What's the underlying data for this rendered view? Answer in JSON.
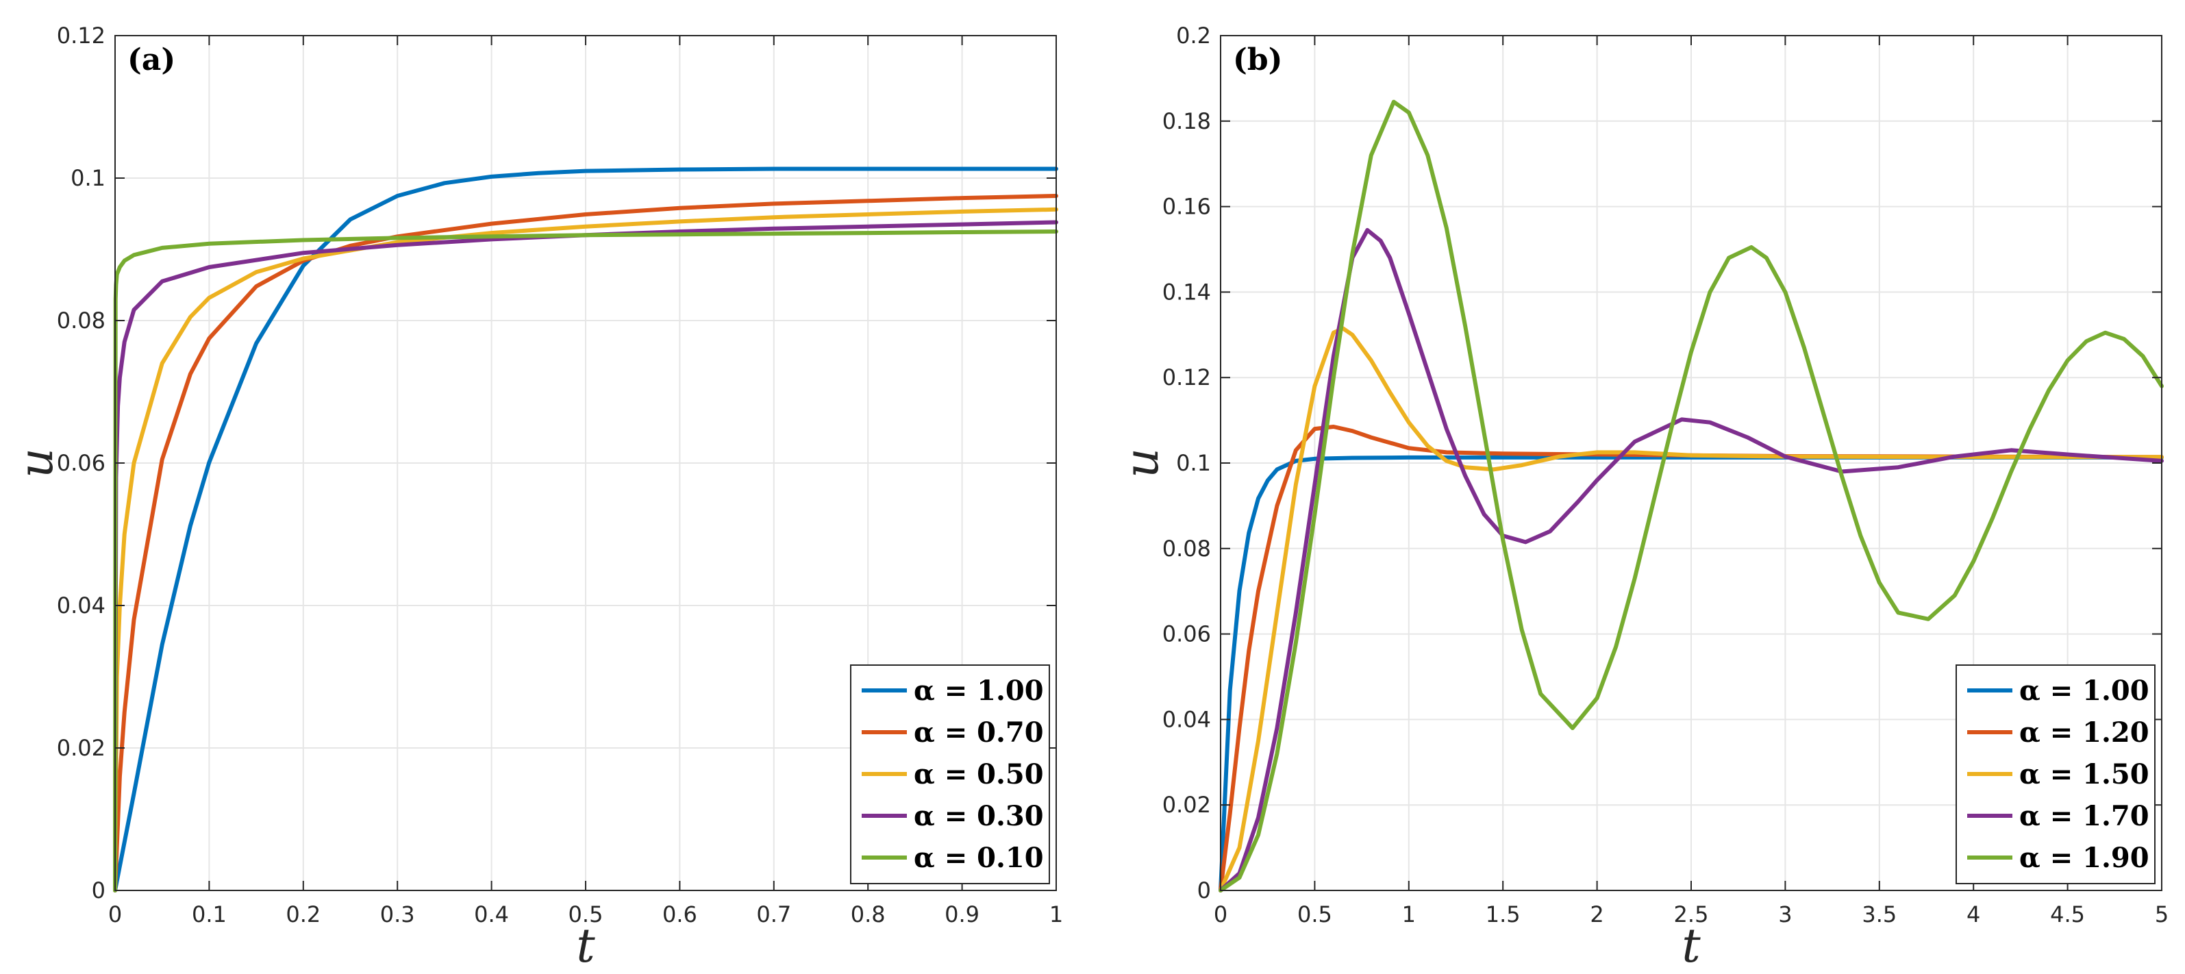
{
  "chart_data": [
    {
      "type": "line",
      "panel_label": "(a)",
      "xlabel": "t",
      "ylabel": "u",
      "xlim": [
        0,
        1
      ],
      "ylim": [
        0,
        0.12
      ],
      "xticks": [
        "0",
        "0.1",
        "0.2",
        "0.3",
        "0.4",
        "0.5",
        "0.6",
        "0.7",
        "0.8",
        "0.9",
        "1"
      ],
      "yticks": [
        "0",
        "0.02",
        "0.04",
        "0.06",
        "0.08",
        "0.1",
        "0.12"
      ],
      "grid": true,
      "legend_position": "bottom-right",
      "series": [
        {
          "name": "α = 1.00",
          "color": "#0072BD",
          "x": [
            0,
            0.02,
            0.05,
            0.08,
            0.1,
            0.15,
            0.2,
            0.25,
            0.3,
            0.35,
            0.4,
            0.45,
            0.5,
            0.6,
            0.7,
            0.8,
            0.9,
            1.0
          ],
          "y": [
            0,
            0.0136,
            0.0345,
            0.0512,
            0.0601,
            0.0768,
            0.0877,
            0.0942,
            0.0975,
            0.0993,
            0.1002,
            0.1007,
            0.101,
            0.1012,
            0.1013,
            0.1013,
            0.1013,
            0.1013
          ]
        },
        {
          "name": "α = 0.70",
          "color": "#D95319",
          "x": [
            0,
            0.005,
            0.01,
            0.02,
            0.05,
            0.08,
            0.1,
            0.15,
            0.2,
            0.25,
            0.3,
            0.4,
            0.5,
            0.6,
            0.7,
            0.8,
            0.9,
            1.0
          ],
          "y": [
            0,
            0.016,
            0.025,
            0.038,
            0.0605,
            0.0725,
            0.0775,
            0.0848,
            0.0884,
            0.0905,
            0.0918,
            0.0936,
            0.0949,
            0.0958,
            0.0964,
            0.0968,
            0.0972,
            0.0975
          ]
        },
        {
          "name": "α = 0.50",
          "color": "#EDB120",
          "x": [
            0,
            0.002,
            0.005,
            0.01,
            0.02,
            0.05,
            0.08,
            0.1,
            0.15,
            0.2,
            0.3,
            0.4,
            0.5,
            0.6,
            0.7,
            0.8,
            0.9,
            1.0
          ],
          "y": [
            0,
            0.03,
            0.04,
            0.05,
            0.06,
            0.074,
            0.0805,
            0.0832,
            0.0868,
            0.0887,
            0.091,
            0.0923,
            0.0932,
            0.0939,
            0.0945,
            0.0949,
            0.0953,
            0.0956
          ]
        },
        {
          "name": "α = 0.30",
          "color": "#7E2F8E",
          "x": [
            0,
            0.001,
            0.003,
            0.005,
            0.01,
            0.02,
            0.05,
            0.1,
            0.15,
            0.2,
            0.3,
            0.4,
            0.5,
            0.6,
            0.7,
            0.8,
            0.9,
            1.0
          ],
          "y": [
            0,
            0.058,
            0.068,
            0.072,
            0.077,
            0.0815,
            0.0855,
            0.0875,
            0.0885,
            0.0895,
            0.0906,
            0.0914,
            0.092,
            0.0925,
            0.0929,
            0.0932,
            0.0935,
            0.0938
          ]
        },
        {
          "name": "α = 0.10",
          "color": "#77AC30",
          "x": [
            0,
            0.0005,
            0.001,
            0.002,
            0.005,
            0.01,
            0.02,
            0.05,
            0.1,
            0.2,
            0.3,
            0.4,
            0.5,
            0.6,
            0.7,
            0.8,
            0.9,
            1.0
          ],
          "y": [
            0,
            0.083,
            0.085,
            0.0865,
            0.0875,
            0.0884,
            0.0892,
            0.0902,
            0.0908,
            0.0913,
            0.0916,
            0.0918,
            0.092,
            0.0921,
            0.0922,
            0.0923,
            0.0924,
            0.0925
          ]
        }
      ]
    },
    {
      "type": "line",
      "panel_label": "(b)",
      "xlabel": "t",
      "ylabel": "u",
      "xlim": [
        0,
        5
      ],
      "ylim": [
        0,
        0.2
      ],
      "xticks": [
        "0",
        "0.5",
        "1",
        "1.5",
        "2",
        "2.5",
        "3",
        "3.5",
        "4",
        "4.5",
        "5"
      ],
      "yticks": [
        "0",
        "0.02",
        "0.04",
        "0.06",
        "0.08",
        "0.1",
        "0.12",
        "0.14",
        "0.16",
        "0.18",
        "0.2"
      ],
      "grid": true,
      "legend_position": "bottom-right",
      "series": [
        {
          "name": "α = 1.00",
          "color": "#0072BD",
          "x": [
            0,
            0.05,
            0.1,
            0.15,
            0.2,
            0.25,
            0.3,
            0.4,
            0.5,
            0.7,
            1.0,
            1.5,
            2,
            3,
            4,
            5
          ],
          "y": [
            0,
            0.0468,
            0.0701,
            0.0836,
            0.0917,
            0.0959,
            0.0985,
            0.1005,
            0.101,
            0.1012,
            0.1013,
            0.1013,
            0.1013,
            0.1013,
            0.1013,
            0.1013
          ]
        },
        {
          "name": "α = 1.20",
          "color": "#D95319",
          "x": [
            0,
            0.05,
            0.1,
            0.15,
            0.2,
            0.3,
            0.4,
            0.5,
            0.6,
            0.7,
            0.8,
            1.0,
            1.2,
            1.5,
            2.0,
            2.5,
            3,
            4,
            5
          ],
          "y": [
            0,
            0.018,
            0.038,
            0.056,
            0.07,
            0.09,
            0.103,
            0.108,
            0.1085,
            0.1075,
            0.106,
            0.1035,
            0.1025,
            0.1022,
            0.102,
            0.1018,
            0.1016,
            0.1015,
            0.1014
          ]
        },
        {
          "name": "α = 1.50",
          "color": "#EDB120",
          "x": [
            0,
            0.1,
            0.2,
            0.3,
            0.4,
            0.5,
            0.6,
            0.65,
            0.7,
            0.8,
            0.9,
            1.0,
            1.1,
            1.2,
            1.3,
            1.45,
            1.6,
            1.8,
            2.0,
            2.2,
            2.5,
            3,
            4,
            5
          ],
          "y": [
            0,
            0.01,
            0.035,
            0.065,
            0.095,
            0.118,
            0.1305,
            0.1315,
            0.13,
            0.124,
            0.1165,
            0.1095,
            0.104,
            0.1005,
            0.099,
            0.0985,
            0.0995,
            0.1015,
            0.1025,
            0.1025,
            0.1018,
            0.1015,
            0.1014,
            0.1014
          ]
        },
        {
          "name": "α = 1.70",
          "color": "#7E2F8E",
          "x": [
            0,
            0.1,
            0.2,
            0.3,
            0.4,
            0.5,
            0.6,
            0.7,
            0.78,
            0.85,
            0.9,
            1.0,
            1.1,
            1.2,
            1.3,
            1.4,
            1.5,
            1.62,
            1.75,
            1.9,
            2.0,
            2.2,
            2.45,
            2.6,
            2.8,
            3.0,
            3.3,
            3.6,
            3.9,
            4.2,
            4.5,
            5.0
          ],
          "y": [
            0,
            0.004,
            0.017,
            0.038,
            0.065,
            0.095,
            0.125,
            0.148,
            0.1545,
            0.152,
            0.148,
            0.135,
            0.1215,
            0.108,
            0.097,
            0.088,
            0.083,
            0.0815,
            0.084,
            0.091,
            0.096,
            0.105,
            0.1102,
            0.1095,
            0.106,
            0.1015,
            0.098,
            0.099,
            0.1015,
            0.103,
            0.102,
            0.1005
          ]
        },
        {
          "name": "α = 1.90",
          "color": "#77AC30",
          "x": [
            0,
            0.1,
            0.2,
            0.3,
            0.4,
            0.5,
            0.6,
            0.7,
            0.8,
            0.92,
            1.0,
            1.1,
            1.2,
            1.3,
            1.4,
            1.5,
            1.6,
            1.7,
            1.87,
            2.0,
            2.1,
            2.2,
            2.3,
            2.4,
            2.5,
            2.6,
            2.7,
            2.82,
            2.9,
            3.0,
            3.1,
            3.2,
            3.3,
            3.4,
            3.5,
            3.6,
            3.76,
            3.9,
            4.0,
            4.1,
            4.2,
            4.3,
            4.4,
            4.5,
            4.6,
            4.7,
            4.8,
            4.9,
            5.0
          ],
          "y": [
            0,
            0.003,
            0.013,
            0.032,
            0.058,
            0.088,
            0.12,
            0.149,
            0.172,
            0.1845,
            0.182,
            0.172,
            0.155,
            0.132,
            0.107,
            0.082,
            0.061,
            0.046,
            0.038,
            0.045,
            0.057,
            0.073,
            0.091,
            0.109,
            0.126,
            0.14,
            0.148,
            0.1505,
            0.148,
            0.14,
            0.127,
            0.112,
            0.097,
            0.083,
            0.072,
            0.065,
            0.0635,
            0.069,
            0.077,
            0.087,
            0.098,
            0.108,
            0.117,
            0.124,
            0.1285,
            0.1305,
            0.129,
            0.125,
            0.118
          ]
        }
      ]
    }
  ]
}
